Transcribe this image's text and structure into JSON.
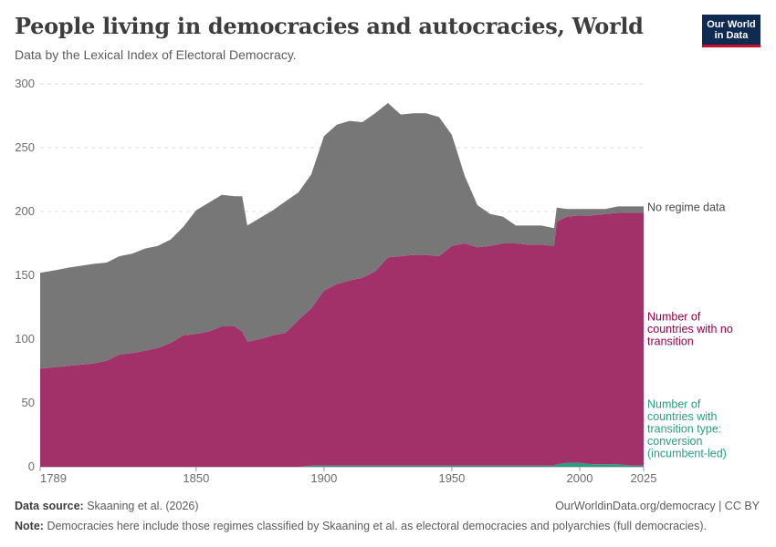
{
  "header": {
    "title": "People living in democracies and autocracies, World",
    "subtitle": "Data by the Lexical Index of Electoral Democracy."
  },
  "logo": {
    "line1": "Our World",
    "line2": "in Data"
  },
  "footer": {
    "source_label": "Data source:",
    "source_text": "Skaaning et al. (2026)",
    "url_text": "OurWorldinData.org/democracy | CC BY",
    "note_label": "Note:",
    "note_text": "Democracies here include those regimes classified by Skaaning et al. as electoral democracies and polyarchies (full democracies)."
  },
  "chart_data": {
    "type": "area",
    "stacked": true,
    "title": "People living in democracies and autocracies, World",
    "xlim": [
      1789,
      2025
    ],
    "ylim": [
      0,
      300
    ],
    "x_ticks": [
      "1789",
      "1850",
      "1900",
      "1950",
      "2000",
      "2025"
    ],
    "y_ticks": [
      "0",
      "50",
      "100",
      "150",
      "200",
      "250",
      "300"
    ],
    "grid": "horizontal dashed",
    "legend_placement": "right (inline labels)",
    "x": [
      1789,
      1795,
      1800,
      1810,
      1815,
      1820,
      1825,
      1830,
      1835,
      1840,
      1845,
      1850,
      1855,
      1860,
      1865,
      1868,
      1870,
      1875,
      1880,
      1885,
      1890,
      1895,
      1900,
      1905,
      1910,
      1915,
      1920,
      1925,
      1930,
      1935,
      1940,
      1945,
      1950,
      1955,
      1960,
      1965,
      1970,
      1975,
      1980,
      1985,
      1990,
      1991,
      1995,
      2000,
      2005,
      2010,
      2015,
      2020,
      2025
    ],
    "series": [
      {
        "name": "Number of countries with transition type: conversion (incumbent-led)",
        "color": "#2c9c80",
        "values": [
          0,
          0,
          0,
          0,
          0,
          0,
          0,
          0,
          0,
          0,
          0,
          0,
          0,
          0,
          0,
          0,
          0,
          0,
          0,
          0,
          0,
          1,
          1,
          1,
          1,
          1,
          1,
          1,
          1,
          1,
          1,
          1,
          1,
          1,
          1,
          1,
          1,
          1,
          1,
          1,
          1,
          2,
          3,
          3,
          2,
          2,
          2,
          1,
          1
        ]
      },
      {
        "name": "Number of countries with no transition",
        "color": "#a2316a",
        "values": [
          77,
          78,
          79,
          81,
          83,
          88,
          89,
          91,
          93,
          97,
          103,
          104,
          106,
          110,
          110,
          106,
          98,
          100,
          103,
          105,
          115,
          123,
          137,
          142,
          145,
          147,
          152,
          163,
          164,
          165,
          165,
          164,
          172,
          174,
          171,
          172,
          174,
          174,
          173,
          173,
          172,
          190,
          193,
          194,
          195,
          196,
          197,
          198,
          198
        ]
      },
      {
        "name": "No regime data",
        "color": "#777777",
        "values": [
          75,
          76,
          77,
          78,
          77,
          77,
          78,
          80,
          80,
          81,
          85,
          97,
          101,
          103,
          102,
          106,
          91,
          95,
          98,
          103,
          100,
          105,
          121,
          125,
          125,
          122,
          124,
          121,
          111,
          111,
          111,
          109,
          87,
          53,
          33,
          25,
          21,
          14,
          15,
          15,
          14,
          11,
          6,
          5,
          5,
          4,
          5,
          5,
          5
        ]
      }
    ]
  },
  "colors": {
    "no_regime": "#777777",
    "no_transition": "#a2316a",
    "conversion": "#2c9c80",
    "no_transition_label": "#970046",
    "conversion_label": "#2c9c80"
  }
}
